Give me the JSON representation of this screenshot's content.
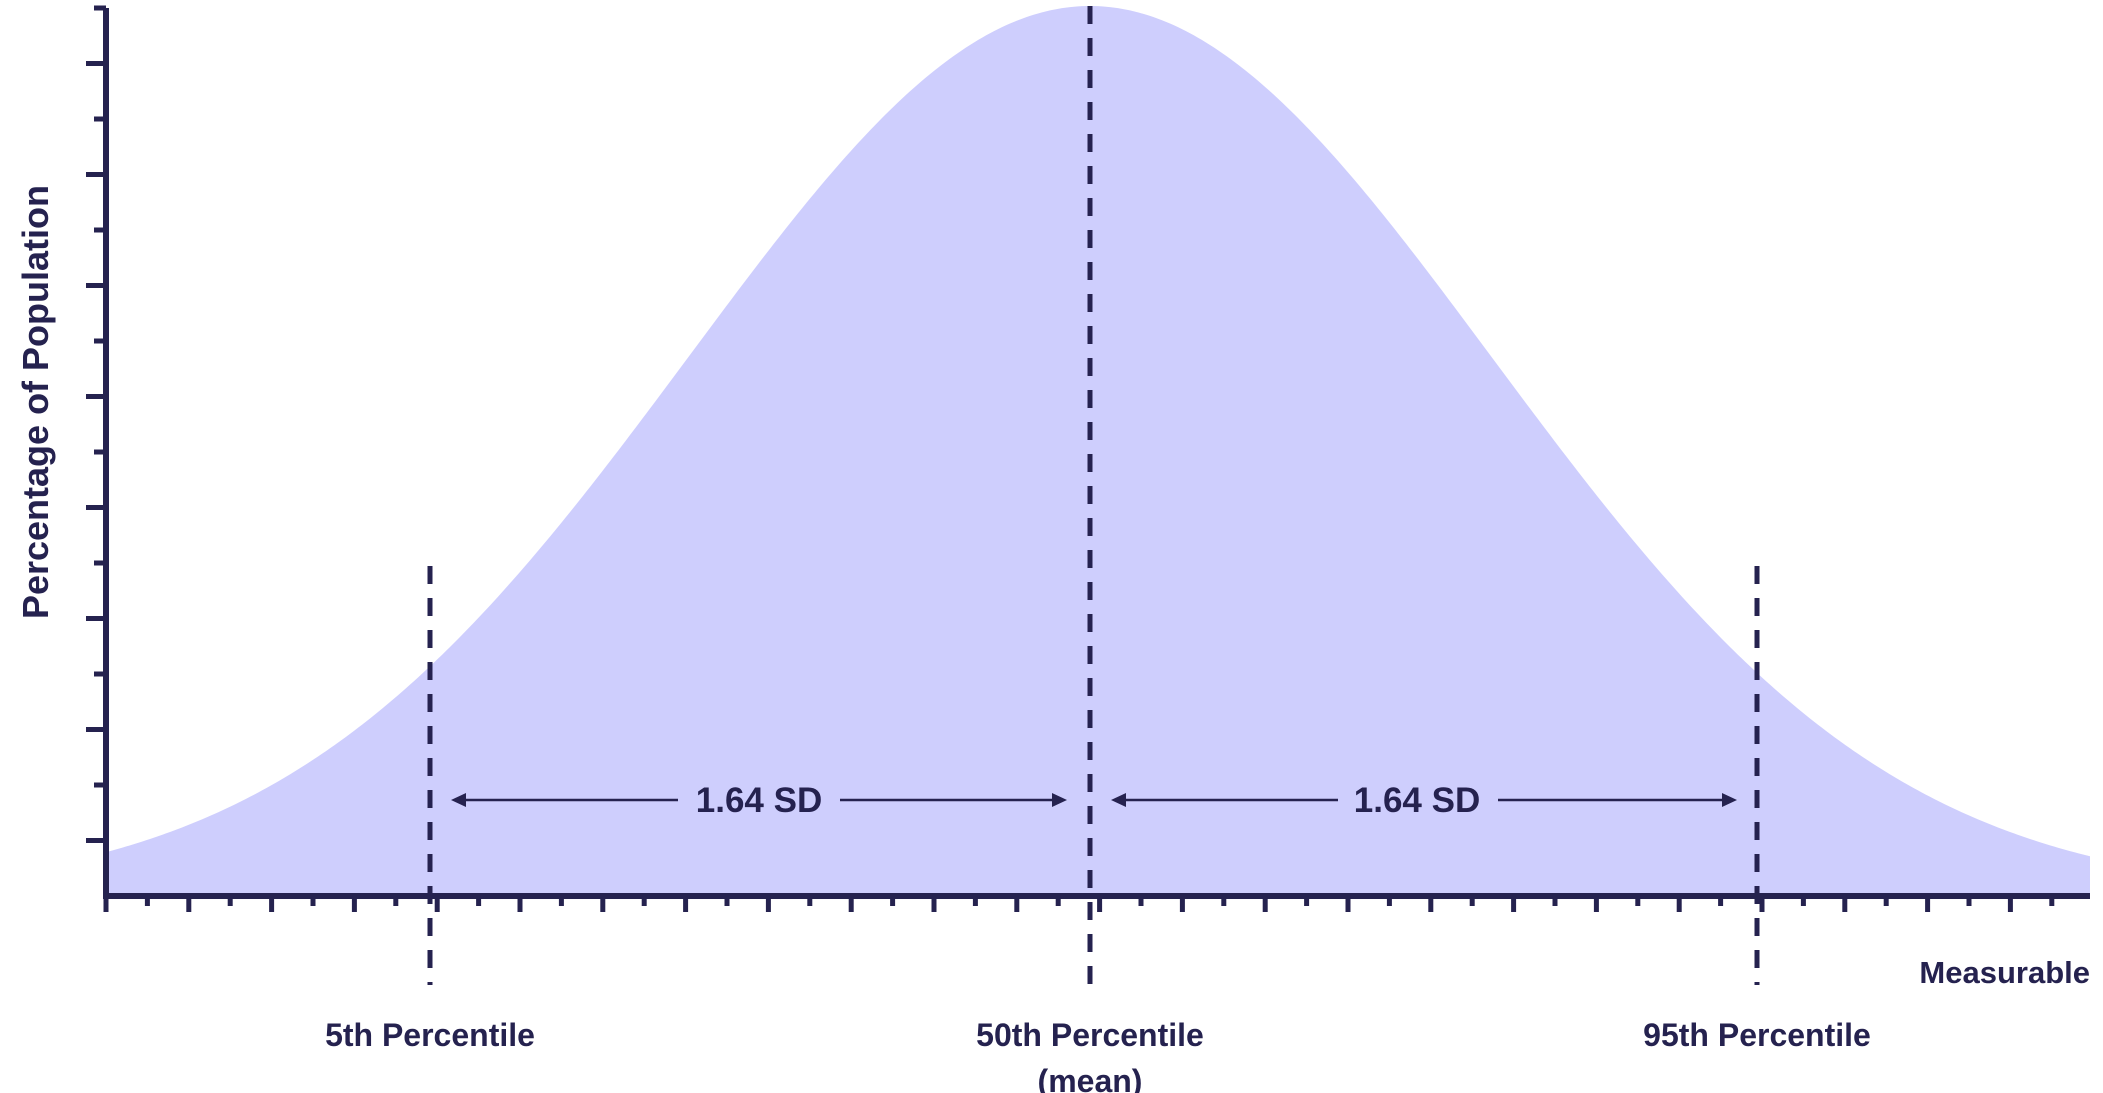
{
  "figure": {
    "ylabel": "Percentage of Population",
    "xlabel": "Measurable",
    "annotations": [
      {
        "id": "left",
        "text": "1.64 SD"
      },
      {
        "id": "right",
        "text": "1.64 SD"
      }
    ],
    "markers": [
      {
        "id": "p5",
        "label": "5th Percentile",
        "sublabel": ""
      },
      {
        "id": "p50",
        "label": "50th Percentile",
        "sublabel": "(mean)"
      },
      {
        "id": "p95",
        "label": "95th Percentile",
        "sublabel": ""
      }
    ],
    "colors": {
      "curve_fill": "#cecefd",
      "ink": "#25224f",
      "background": "#ffffff"
    }
  }
}
